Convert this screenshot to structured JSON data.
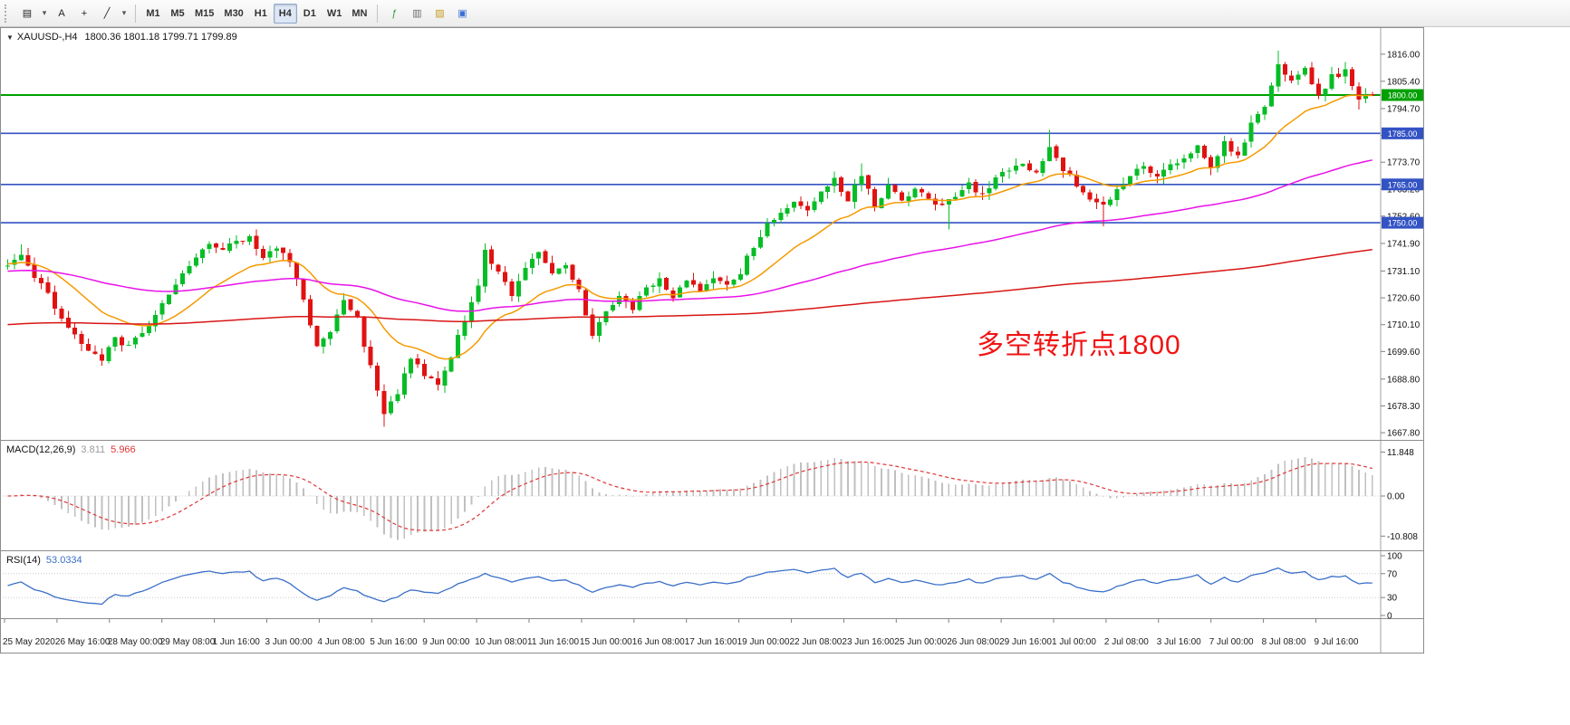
{
  "app": {
    "name": "MetaTrader terminal",
    "background": "#ffffff"
  },
  "toolbar": {
    "left_tools": [
      {
        "name": "new-chart",
        "glyph": "▤"
      },
      {
        "name": "chart-type-dropdown",
        "glyph": "▾"
      },
      {
        "name": "text-label-tool",
        "glyph": "A"
      },
      {
        "name": "crosshair-tool",
        "glyph": "+"
      },
      {
        "name": "trendline-tool",
        "glyph": "╱"
      },
      {
        "name": "line-tools-dropdown",
        "glyph": "▾"
      }
    ],
    "timeframes": [
      {
        "label": "M1",
        "active": false
      },
      {
        "label": "M5",
        "active": false
      },
      {
        "label": "M15",
        "active": false
      },
      {
        "label": "M30",
        "active": false
      },
      {
        "label": "H1",
        "active": false
      },
      {
        "label": "H4",
        "active": true
      },
      {
        "label": "D1",
        "active": false
      },
      {
        "label": "W1",
        "active": false
      },
      {
        "label": "MN",
        "active": false
      }
    ],
    "action_icons": [
      {
        "name": "indicators-icon",
        "glyph": "ƒ",
        "color": "#2e9e3f"
      },
      {
        "name": "periods-icon",
        "glyph": "▥",
        "color": "#6b6b6b"
      },
      {
        "name": "templates-icon",
        "glyph": "▨",
        "color": "#c79a1e"
      },
      {
        "name": "tile-windows-icon",
        "glyph": "▣",
        "color": "#3b6fd4"
      }
    ]
  },
  "chart": {
    "symbol_period": "XAUUSD-,H4",
    "ohlc": "1800.36 1801.18 1799.71 1799.89",
    "expander_glyph": "▼",
    "annotation": {
      "text": "多空转折点1800",
      "color": "#f01414"
    }
  },
  "indicators": {
    "macd": {
      "label": "MACD(12,26,9)",
      "value_main": "3.811",
      "value_signal": "5.966",
      "scale_labels": [
        {
          "text": "11.848",
          "value": 11.848
        },
        {
          "text": "0.00",
          "value": 0
        },
        {
          "text": "-10.808",
          "value": -10.808
        }
      ],
      "histogram_color": "#c0c0c0",
      "signal_color": "#e03535"
    },
    "rsi": {
      "label": "RSI(14)",
      "value": "53.0334",
      "scale_labels": [
        {
          "text": "100",
          "value": 100
        },
        {
          "text": "70",
          "value": 70
        },
        {
          "text": "30",
          "value": 30
        },
        {
          "text": "0",
          "value": 0
        }
      ],
      "levels": [
        70,
        30
      ],
      "line_color": "#3a6fc9"
    }
  },
  "price_axis": {
    "labels": [
      {
        "text": "1816.00",
        "value": 1816.0
      },
      {
        "text": "1805.40",
        "value": 1805.4
      },
      {
        "text": "1794.70",
        "value": 1794.7
      },
      {
        "text": "1784.20",
        "value": 1784.2
      },
      {
        "text": "1773.70",
        "value": 1773.7
      },
      {
        "text": "1763.20",
        "value": 1763.2
      },
      {
        "text": "1752.60",
        "value": 1752.6
      },
      {
        "text": "1741.90",
        "value": 1741.9
      },
      {
        "text": "1731.10",
        "value": 1731.1
      },
      {
        "text": "1720.60",
        "value": 1720.6
      },
      {
        "text": "1710.10",
        "value": 1710.1
      },
      {
        "text": "1699.60",
        "value": 1699.6
      },
      {
        "text": "1688.80",
        "value": 1688.8
      },
      {
        "text": "1678.30",
        "value": 1678.3
      },
      {
        "text": "1667.80",
        "value": 1667.8
      }
    ]
  },
  "time_axis": {
    "labels": [
      "25 May 2020",
      "26 May 16:00",
      "28 May 00:00",
      "29 May 08:00",
      "1 Jun 16:00",
      "3 Jun 00:00",
      "4 Jun 08:00",
      "5 Jun 16:00",
      "9 Jun 00:00",
      "10 Jun 08:00",
      "11 Jun 16:00",
      "15 Jun 00:00",
      "16 Jun 08:00",
      "17 Jun 16:00",
      "19 Jun 00:00",
      "22 Jun 08:00",
      "23 Jun 16:00",
      "25 Jun 00:00",
      "26 Jun 08:00",
      "29 Jun 16:00",
      "1 Jul 00:00",
      "2 Jul 08:00",
      "3 Jul 16:00",
      "7 Jul 00:00",
      "8 Jul 08:00",
      "9 Jul 16:00"
    ]
  },
  "hlines": [
    {
      "price_label": "1800.00",
      "value": 1800,
      "color": "#00a000",
      "width": 2
    },
    {
      "price_label": "1785.00",
      "value": 1785,
      "color": "#3353c4",
      "width": 1.6
    },
    {
      "price_label": "1765.00",
      "value": 1765,
      "color": "#3353c4",
      "width": 1.6
    },
    {
      "price_label": "1750.00",
      "value": 1750,
      "color": "#3353c4",
      "width": 1.6
    }
  ],
  "chart_data": {
    "type": "candlestick",
    "symbol": "XAUUSD",
    "timeframe": "H4",
    "bars": 204,
    "date_range": [
      "25 May 2020",
      "9 Jul 2020 16:00"
    ],
    "price_range_approx": [
      1665,
      1825
    ],
    "up_color": "#06bd26",
    "down_color": "#e01212",
    "last_candle": [
      1800.36,
      1801.18,
      1799.71,
      1799.89
    ],
    "price_path": [
      [
        0,
        1733
      ],
      [
        2,
        1737
      ],
      [
        4,
        1729
      ],
      [
        6,
        1722
      ],
      [
        8,
        1713
      ],
      [
        10,
        1706
      ],
      [
        12,
        1699
      ],
      [
        14,
        1696
      ],
      [
        16,
        1705
      ],
      [
        18,
        1701
      ],
      [
        20,
        1707
      ],
      [
        22,
        1714
      ],
      [
        24,
        1722
      ],
      [
        26,
        1730
      ],
      [
        28,
        1737
      ],
      [
        30,
        1742
      ],
      [
        32,
        1739
      ],
      [
        34,
        1743
      ],
      [
        36,
        1745
      ],
      [
        38,
        1737
      ],
      [
        40,
        1741
      ],
      [
        42,
        1734
      ],
      [
        44,
        1720
      ],
      [
        46,
        1701
      ],
      [
        48,
        1707
      ],
      [
        50,
        1719
      ],
      [
        52,
        1712
      ],
      [
        54,
        1693
      ],
      [
        56,
        1675
      ],
      [
        58,
        1684
      ],
      [
        60,
        1697
      ],
      [
        62,
        1690
      ],
      [
        64,
        1687
      ],
      [
        66,
        1698
      ],
      [
        68,
        1712
      ],
      [
        70,
        1726
      ],
      [
        71,
        1739
      ],
      [
        73,
        1731
      ],
      [
        75,
        1722
      ],
      [
        77,
        1733
      ],
      [
        79,
        1738
      ],
      [
        81,
        1730
      ],
      [
        83,
        1734
      ],
      [
        85,
        1723
      ],
      [
        87,
        1706
      ],
      [
        89,
        1716
      ],
      [
        91,
        1722
      ],
      [
        93,
        1717
      ],
      [
        95,
        1725
      ],
      [
        97,
        1728
      ],
      [
        99,
        1721
      ],
      [
        101,
        1727
      ],
      [
        103,
        1723
      ],
      [
        105,
        1729
      ],
      [
        107,
        1725
      ],
      [
        109,
        1731
      ],
      [
        111,
        1741
      ],
      [
        113,
        1749
      ],
      [
        115,
        1754
      ],
      [
        117,
        1759
      ],
      [
        119,
        1754
      ],
      [
        121,
        1763
      ],
      [
        123,
        1767
      ],
      [
        125,
        1759
      ],
      [
        127,
        1769
      ],
      [
        129,
        1757
      ],
      [
        131,
        1764
      ],
      [
        133,
        1758
      ],
      [
        135,
        1763
      ],
      [
        137,
        1759
      ],
      [
        139,
        1756
      ],
      [
        141,
        1760
      ],
      [
        143,
        1765
      ],
      [
        145,
        1761
      ],
      [
        147,
        1768
      ],
      [
        149,
        1770
      ],
      [
        151,
        1773
      ],
      [
        153,
        1769
      ],
      [
        155,
        1779
      ],
      [
        157,
        1771
      ],
      [
        159,
        1765
      ],
      [
        161,
        1759
      ],
      [
        163,
        1756
      ],
      [
        165,
        1763
      ],
      [
        167,
        1769
      ],
      [
        169,
        1772
      ],
      [
        171,
        1768
      ],
      [
        173,
        1773
      ],
      [
        175,
        1775
      ],
      [
        177,
        1780
      ],
      [
        179,
        1771
      ],
      [
        181,
        1781
      ],
      [
        183,
        1776
      ],
      [
        185,
        1789
      ],
      [
        187,
        1796
      ],
      [
        189,
        1811
      ],
      [
        191,
        1805
      ],
      [
        193,
        1811
      ],
      [
        195,
        1799
      ],
      [
        197,
        1807
      ],
      [
        199,
        1809
      ],
      [
        201,
        1799
      ],
      [
        203,
        1799.89
      ]
    ],
    "wick_overrides": [
      [
        2,
        "high",
        1741.5
      ],
      [
        56,
        "low",
        1670.2
      ],
      [
        127,
        "high",
        1773.2
      ],
      [
        140,
        "low",
        1747.3
      ],
      [
        155,
        "high",
        1786.4
      ],
      [
        163,
        "low",
        1748.6
      ],
      [
        189,
        "high",
        1817.4
      ],
      [
        201,
        "low",
        1794.3
      ]
    ],
    "moving_averages": [
      {
        "name": "ma-fast",
        "color": "#f59a00",
        "period": 18,
        "init": 1734
      },
      {
        "name": "ma-medium",
        "color": "#e812e8",
        "period": 89,
        "init": 1731
      },
      {
        "name": "ma-slow",
        "color": "#d81616",
        "period": 350,
        "init": 1710
      }
    ]
  }
}
